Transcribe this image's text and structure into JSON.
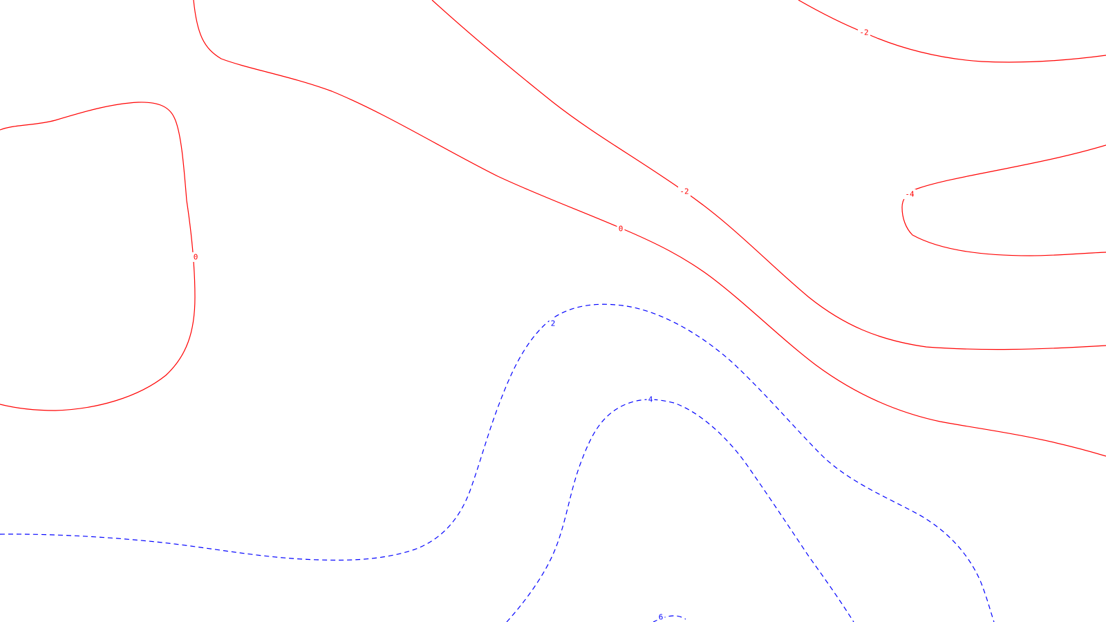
{
  "chart_data": {
    "type": "contour",
    "title": "",
    "xlabel": "",
    "ylabel": "",
    "grid": false,
    "legend": "none",
    "styles": {
      "positive": {
        "color": "#0000ff",
        "dash": "dashed"
      },
      "negative": {
        "color": "#ff0000",
        "dash": "solid"
      },
      "zero": {
        "color": "#ff0000",
        "dash": "solid"
      }
    },
    "contours": [
      {
        "level": 0,
        "label": "0",
        "style": "zero",
        "id": "zero-left-loop"
      },
      {
        "level": 0,
        "label": "0",
        "style": "zero",
        "id": "zero-main"
      },
      {
        "level": -2,
        "label": "-2",
        "style": "negative",
        "id": "neg2-center"
      },
      {
        "level": -2,
        "label": "-2",
        "style": "negative",
        "id": "neg2-top-right"
      },
      {
        "level": -4,
        "label": "-4",
        "style": "negative",
        "id": "neg4-right"
      },
      {
        "level": 2,
        "label": "2",
        "style": "positive",
        "id": "pos2"
      },
      {
        "level": 4,
        "label": "4",
        "style": "positive",
        "id": "pos4"
      },
      {
        "level": 6,
        "label": "6",
        "style": "positive",
        "id": "pos6"
      }
    ]
  }
}
